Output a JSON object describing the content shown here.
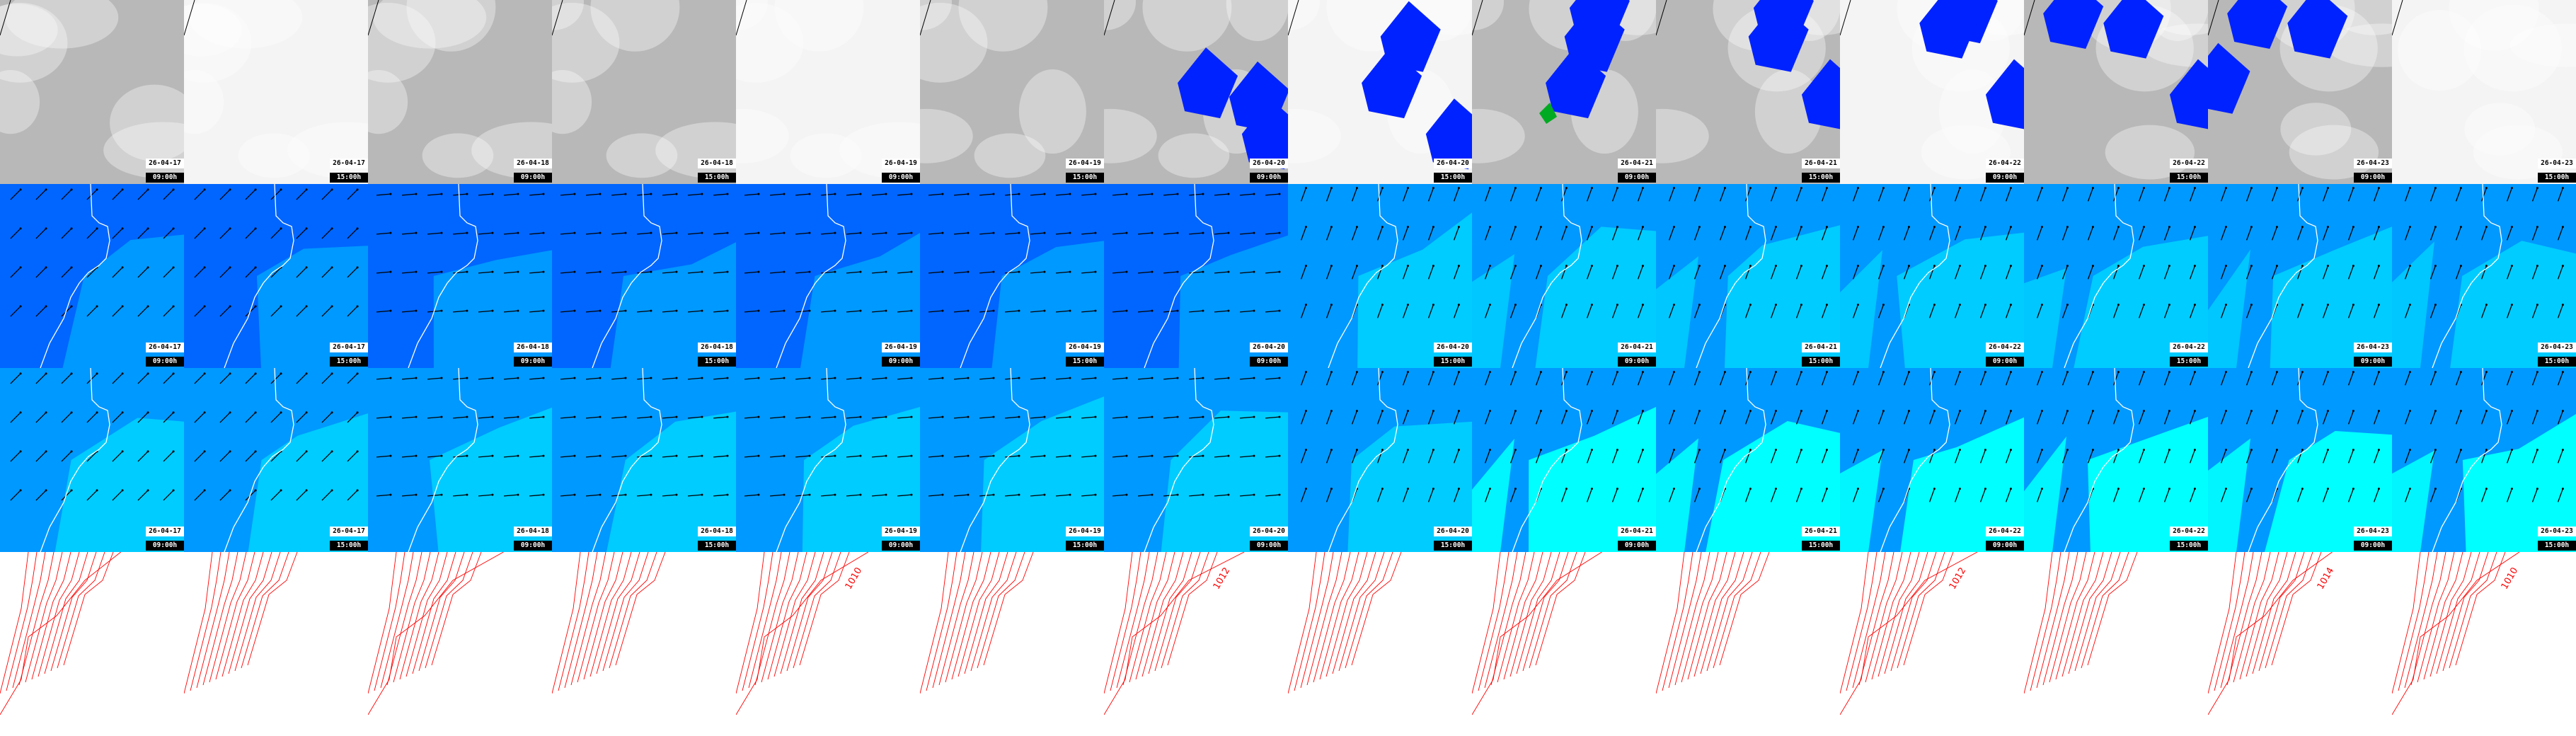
{
  "frames": [
    {
      "date": "26-04-17",
      "time": "09:00h"
    },
    {
      "date": "26-04-17",
      "time": "15:00h"
    },
    {
      "date": "26-04-18",
      "time": "09:00h"
    },
    {
      "date": "26-04-18",
      "time": "15:00h"
    },
    {
      "date": "26-04-19",
      "time": "09:00h"
    },
    {
      "date": "26-04-19",
      "time": "15:00h"
    },
    {
      "date": "26-04-20",
      "time": "09:00h"
    },
    {
      "date": "26-04-20",
      "time": "15:00h"
    },
    {
      "date": "26-04-21",
      "time": "09:00h"
    },
    {
      "date": "26-04-21",
      "time": "15:00h"
    },
    {
      "date": "26-04-22",
      "time": "09:00h"
    },
    {
      "date": "26-04-22",
      "time": "15:00h"
    },
    {
      "date": "26-04-23",
      "time": "09:00h"
    },
    {
      "date": "26-04-23",
      "time": "15:00h"
    }
  ],
  "labeled_rows": 3,
  "isobar_labels": [
    "",
    "",
    "",
    "",
    "1010",
    "",
    "1012",
    "",
    "",
    "",
    "1012",
    "",
    "1014",
    "1010"
  ],
  "colors": {
    "cloud_grey": "#b8b8b8",
    "precip_blue": "#0022ff",
    "precip_green": "#00aa22",
    "wind_dark": "#0066ff",
    "wind_mid": "#0099ff",
    "wind_light": "#00ccff",
    "gust_cyan": "#00ffff",
    "isobar": "#ff0000",
    "coastline": "#ffffff"
  }
}
